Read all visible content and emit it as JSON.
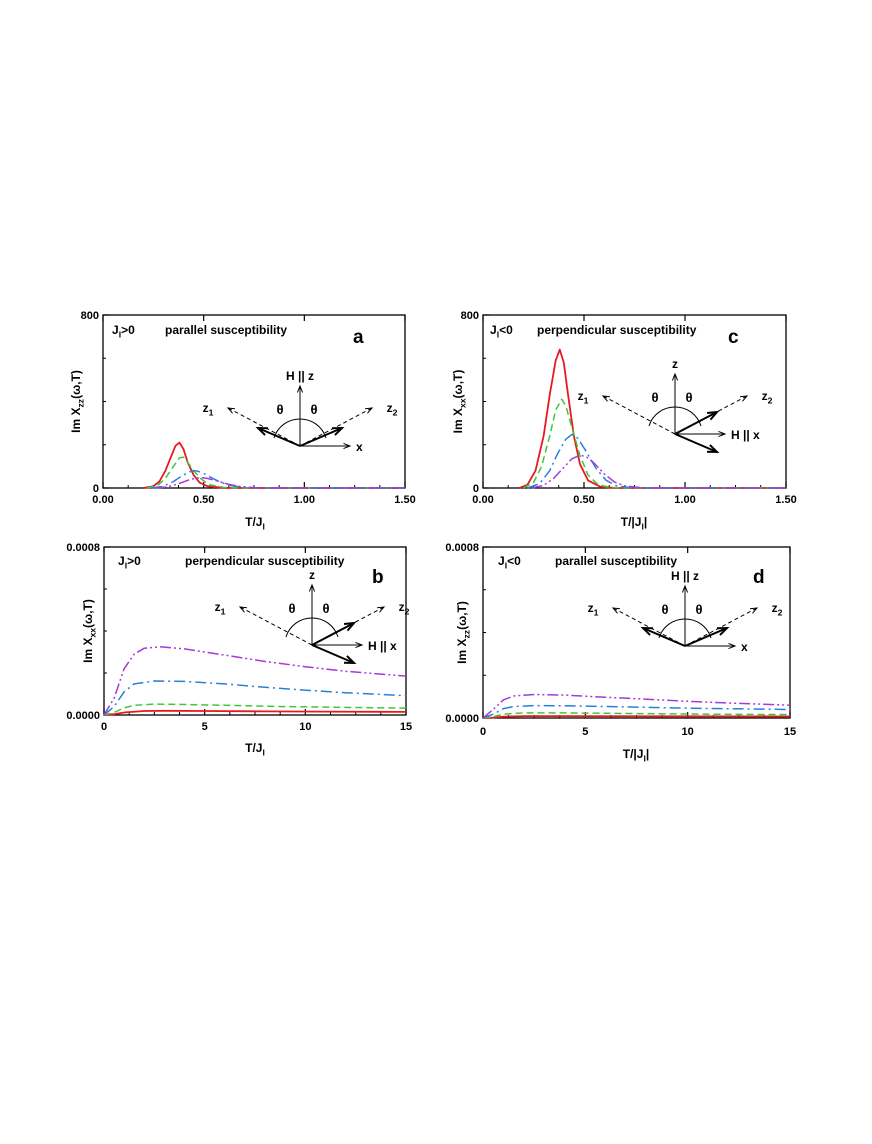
{
  "chart_data": [
    {
      "panel": "a",
      "type": "line",
      "condition": "J",
      "condition_sub": "l",
      "condition_tail": ">0",
      "title": "parallel susceptibility",
      "ylabel": "Im X",
      "ylabel_sub": "zz",
      "ylabel_tail": "(ω,T)",
      "xlabel": "T/J",
      "xlabel_sub": "l",
      "xlabel_tail": "",
      "xlim": [
        0,
        1.5
      ],
      "ylim": [
        0,
        800
      ],
      "x_ticks": [
        "0.00",
        "0.50",
        "1.00",
        "1.50"
      ],
      "x_tick_values": [
        0,
        0.5,
        1.0,
        1.5
      ],
      "y_ticks": [
        "0",
        "800"
      ],
      "y_tick_values": [
        0,
        800
      ],
      "series": [
        {
          "color": "#e8191e",
          "dash": "solid",
          "points": [
            [
              0.2,
              0
            ],
            [
              0.25,
              8
            ],
            [
              0.28,
              30
            ],
            [
              0.31,
              80
            ],
            [
              0.34,
              150
            ],
            [
              0.36,
              195
            ],
            [
              0.38,
              210
            ],
            [
              0.4,
              180
            ],
            [
              0.42,
              120
            ],
            [
              0.45,
              60
            ],
            [
              0.48,
              25
            ],
            [
              0.52,
              8
            ],
            [
              0.6,
              1
            ],
            [
              0.7,
              0
            ],
            [
              1.5,
              0
            ]
          ]
        },
        {
          "color": "#3cc83c",
          "dash": "dashed",
          "points": [
            [
              0.22,
              0
            ],
            [
              0.27,
              10
            ],
            [
              0.31,
              45
            ],
            [
              0.35,
              100
            ],
            [
              0.38,
              140
            ],
            [
              0.4,
              142
            ],
            [
              0.42,
              120
            ],
            [
              0.45,
              80
            ],
            [
              0.49,
              40
            ],
            [
              0.53,
              15
            ],
            [
              0.6,
              3
            ],
            [
              0.7,
              0
            ],
            [
              1.5,
              0
            ]
          ]
        },
        {
          "color": "#2a7fd8",
          "dash": "dashdot",
          "points": [
            [
              0.24,
              0
            ],
            [
              0.3,
              8
            ],
            [
              0.35,
              30
            ],
            [
              0.39,
              55
            ],
            [
              0.43,
              75
            ],
            [
              0.46,
              80
            ],
            [
              0.49,
              72
            ],
            [
              0.53,
              52
            ],
            [
              0.58,
              28
            ],
            [
              0.63,
              12
            ],
            [
              0.7,
              3
            ],
            [
              0.8,
              0
            ],
            [
              1.5,
              0
            ]
          ]
        },
        {
          "color": "#a53ad8",
          "dash": "dashdotdot",
          "points": [
            [
              0.26,
              0
            ],
            [
              0.32,
              5
            ],
            [
              0.37,
              18
            ],
            [
              0.42,
              35
            ],
            [
              0.46,
              46
            ],
            [
              0.49,
              48
            ],
            [
              0.52,
              44
            ],
            [
              0.57,
              32
            ],
            [
              0.62,
              18
            ],
            [
              0.68,
              7
            ],
            [
              0.75,
              2
            ],
            [
              0.85,
              0
            ],
            [
              1.5,
              0
            ]
          ]
        }
      ]
    },
    {
      "panel": "b",
      "type": "line",
      "condition": "J",
      "condition_sub": "l",
      "condition_tail": ">0",
      "title": "perpendicular susceptibility",
      "ylabel": "Im X",
      "ylabel_sub": "xx",
      "ylabel_tail": "(ω,T)",
      "xlabel": "T/J",
      "xlabel_sub": "l",
      "xlabel_tail": "",
      "xlim": [
        0,
        15
      ],
      "ylim": [
        0,
        0.0008
      ],
      "x_ticks": [
        "0",
        "5",
        "10",
        "15"
      ],
      "x_tick_values": [
        0,
        5,
        10,
        15
      ],
      "y_ticks": [
        "0.0000",
        "0.0008"
      ],
      "y_tick_values": [
        0,
        0.0008
      ],
      "series": [
        {
          "color": "#e8191e",
          "dash": "solid",
          "points": [
            [
              0,
              0
            ],
            [
              0.5,
              4e-06
            ],
            [
              1,
              1.2e-05
            ],
            [
              2,
              1.9e-05
            ],
            [
              3,
              2e-05
            ],
            [
              5,
              1.9e-05
            ],
            [
              8,
              1.7e-05
            ],
            [
              11,
              1.6e-05
            ],
            [
              15,
              1.5e-05
            ]
          ]
        },
        {
          "color": "#3cc83c",
          "dash": "dashed",
          "points": [
            [
              0,
              0
            ],
            [
              0.5,
              1.2e-05
            ],
            [
              1,
              3.4e-05
            ],
            [
              1.5,
              4.6e-05
            ],
            [
              2.5,
              5.2e-05
            ],
            [
              4,
              5e-05
            ],
            [
              6,
              4.6e-05
            ],
            [
              9,
              4e-05
            ],
            [
              12,
              3.6e-05
            ],
            [
              15,
              3.3e-05
            ]
          ]
        },
        {
          "color": "#2a7fd8",
          "dash": "dashdot",
          "points": [
            [
              0,
              0
            ],
            [
              0.5,
              4e-05
            ],
            [
              1,
              0.00011
            ],
            [
              1.5,
              0.000148
            ],
            [
              2.5,
              0.000162
            ],
            [
              4,
              0.00016
            ],
            [
              6,
              0.000148
            ],
            [
              8,
              0.000132
            ],
            [
              10,
              0.000118
            ],
            [
              12,
              0.000106
            ],
            [
              15,
              9.2e-05
            ]
          ]
        },
        {
          "color": "#a53ad8",
          "dash": "dashdotdot",
          "points": [
            [
              0,
              0
            ],
            [
              0.5,
              8e-05
            ],
            [
              1,
              0.00022
            ],
            [
              1.5,
              0.00029
            ],
            [
              2,
              0.000318
            ],
            [
              2.8,
              0.000325
            ],
            [
              4,
              0.000315
            ],
            [
              6,
              0.000285
            ],
            [
              8,
              0.000255
            ],
            [
              10,
              0.00023
            ],
            [
              12,
              0.000208
            ],
            [
              15,
              0.000185
            ]
          ]
        }
      ]
    },
    {
      "panel": "c",
      "type": "line",
      "condition": "J",
      "condition_sub": "l",
      "condition_tail": "<0",
      "title": "perpendicular susceptibility",
      "ylabel": "Im X",
      "ylabel_sub": "xx",
      "ylabel_tail": "(ω,T)",
      "xlabel": "T/|J",
      "xlabel_sub": "l",
      "xlabel_tail": "|",
      "xlim": [
        0,
        1.5
      ],
      "ylim": [
        0,
        800
      ],
      "x_ticks": [
        "0.00",
        "0.50",
        "1.00",
        "1.50"
      ],
      "x_tick_values": [
        0,
        0.5,
        1.0,
        1.5
      ],
      "y_ticks": [
        "0",
        "800"
      ],
      "y_tick_values": [
        0,
        800
      ],
      "series": [
        {
          "color": "#e8191e",
          "dash": "solid",
          "points": [
            [
              0.18,
              0
            ],
            [
              0.22,
              15
            ],
            [
              0.26,
              80
            ],
            [
              0.3,
              240
            ],
            [
              0.33,
              430
            ],
            [
              0.36,
              590
            ],
            [
              0.38,
              640
            ],
            [
              0.4,
              580
            ],
            [
              0.42,
              440
            ],
            [
              0.45,
              240
            ],
            [
              0.48,
              110
            ],
            [
              0.52,
              35
            ],
            [
              0.58,
              6
            ],
            [
              0.65,
              0
            ],
            [
              1.5,
              0
            ]
          ]
        },
        {
          "color": "#3cc83c",
          "dash": "dashed",
          "points": [
            [
              0.2,
              0
            ],
            [
              0.25,
              25
            ],
            [
              0.29,
              100
            ],
            [
              0.33,
              240
            ],
            [
              0.36,
              360
            ],
            [
              0.39,
              410
            ],
            [
              0.41,
              380
            ],
            [
              0.44,
              280
            ],
            [
              0.48,
              150
            ],
            [
              0.52,
              60
            ],
            [
              0.57,
              15
            ],
            [
              0.63,
              3
            ],
            [
              0.7,
              0
            ],
            [
              1.5,
              0
            ]
          ]
        },
        {
          "color": "#2a7fd8",
          "dash": "dashdot",
          "points": [
            [
              0.22,
              0
            ],
            [
              0.28,
              20
            ],
            [
              0.33,
              80
            ],
            [
              0.37,
              160
            ],
            [
              0.41,
              225
            ],
            [
              0.44,
              248
            ],
            [
              0.47,
              230
            ],
            [
              0.51,
              170
            ],
            [
              0.56,
              90
            ],
            [
              0.61,
              35
            ],
            [
              0.66,
              10
            ],
            [
              0.73,
              2
            ],
            [
              0.8,
              0
            ],
            [
              1.5,
              0
            ]
          ]
        },
        {
          "color": "#a53ad8",
          "dash": "dashdotdot",
          "points": [
            [
              0.24,
              0
            ],
            [
              0.3,
              12
            ],
            [
              0.35,
              45
            ],
            [
              0.4,
              95
            ],
            [
              0.44,
              135
            ],
            [
              0.48,
              152
            ],
            [
              0.51,
              145
            ],
            [
              0.55,
              115
            ],
            [
              0.6,
              65
            ],
            [
              0.65,
              28
            ],
            [
              0.7,
              10
            ],
            [
              0.78,
              2
            ],
            [
              0.85,
              0
            ],
            [
              1.5,
              0
            ]
          ]
        }
      ]
    },
    {
      "panel": "d",
      "type": "line",
      "condition": "J",
      "condition_sub": "l",
      "condition_tail": "<0",
      "title": "parallel susceptibility",
      "ylabel": "Im X",
      "ylabel_sub": "zz",
      "ylabel_tail": "(ω,T)",
      "xlabel": "T/|J",
      "xlabel_sub": "l",
      "xlabel_tail": "|",
      "xlim": [
        0,
        15
      ],
      "ylim": [
        0,
        0.0008
      ],
      "x_ticks": [
        "0",
        "5",
        "10",
        "15"
      ],
      "x_tick_values": [
        0,
        5,
        10,
        15
      ],
      "y_ticks": [
        "0.0000",
        "0.0008"
      ],
      "y_tick_values": [
        0,
        0.0008
      ],
      "series": [
        {
          "color": "#e8191e",
          "dash": "solid",
          "points": [
            [
              0,
              0
            ],
            [
              0.5,
              2e-06
            ],
            [
              1,
              6e-06
            ],
            [
              2,
              9e-06
            ],
            [
              4,
              9e-06
            ],
            [
              8,
              8e-06
            ],
            [
              15,
              7e-06
            ]
          ]
        },
        {
          "color": "#3cc83c",
          "dash": "dashed",
          "points": [
            [
              0,
              0
            ],
            [
              0.5,
              6e-06
            ],
            [
              1,
              1.8e-05
            ],
            [
              2,
              2.4e-05
            ],
            [
              4,
              2.4e-05
            ],
            [
              7,
              2.1e-05
            ],
            [
              11,
              1.8e-05
            ],
            [
              15,
              1.6e-05
            ]
          ]
        },
        {
          "color": "#2a7fd8",
          "dash": "dashdot",
          "points": [
            [
              0,
              0
            ],
            [
              0.5,
              1.8e-05
            ],
            [
              1,
              4.4e-05
            ],
            [
              1.5,
              5.4e-05
            ],
            [
              2.5,
              5.8e-05
            ],
            [
              4,
              5.7e-05
            ],
            [
              7,
              5.2e-05
            ],
            [
              10,
              4.6e-05
            ],
            [
              15,
              4e-05
            ]
          ]
        },
        {
          "color": "#a53ad8",
          "dash": "dashdotdot",
          "points": [
            [
              0,
              0
            ],
            [
              0.5,
              4e-05
            ],
            [
              1,
              8.5e-05
            ],
            [
              1.5,
              0.000103
            ],
            [
              2.5,
              0.00011
            ],
            [
              4,
              0.000107
            ],
            [
              6,
              9.7e-05
            ],
            [
              8,
              8.8e-05
            ],
            [
              10,
              7.8e-05
            ],
            [
              12,
              7e-05
            ],
            [
              15,
              6e-05
            ]
          ]
        }
      ]
    }
  ],
  "diagrams": [
    {
      "panel": "a",
      "up_label": "H || z",
      "z1": "z",
      "z1_sub": "1",
      "z2": "z",
      "z2_sub": "2",
      "theta": "θ",
      "x_label": "x"
    },
    {
      "panel": "b",
      "up_label": "z",
      "z1": "z",
      "z1_sub": "1",
      "z2": "z",
      "z2_sub": "2",
      "theta": "θ",
      "x_label": "H || x"
    },
    {
      "panel": "c",
      "up_label": "z",
      "z1": "z",
      "z1_sub": "1",
      "z2": "z",
      "z2_sub": "2",
      "theta": "θ",
      "x_label": "H || x"
    },
    {
      "panel": "d",
      "up_label": "H || z",
      "z1": "z",
      "z1_sub": "1",
      "z2": "z",
      "z2_sub": "2",
      "theta": "θ",
      "x_label": "x"
    }
  ]
}
